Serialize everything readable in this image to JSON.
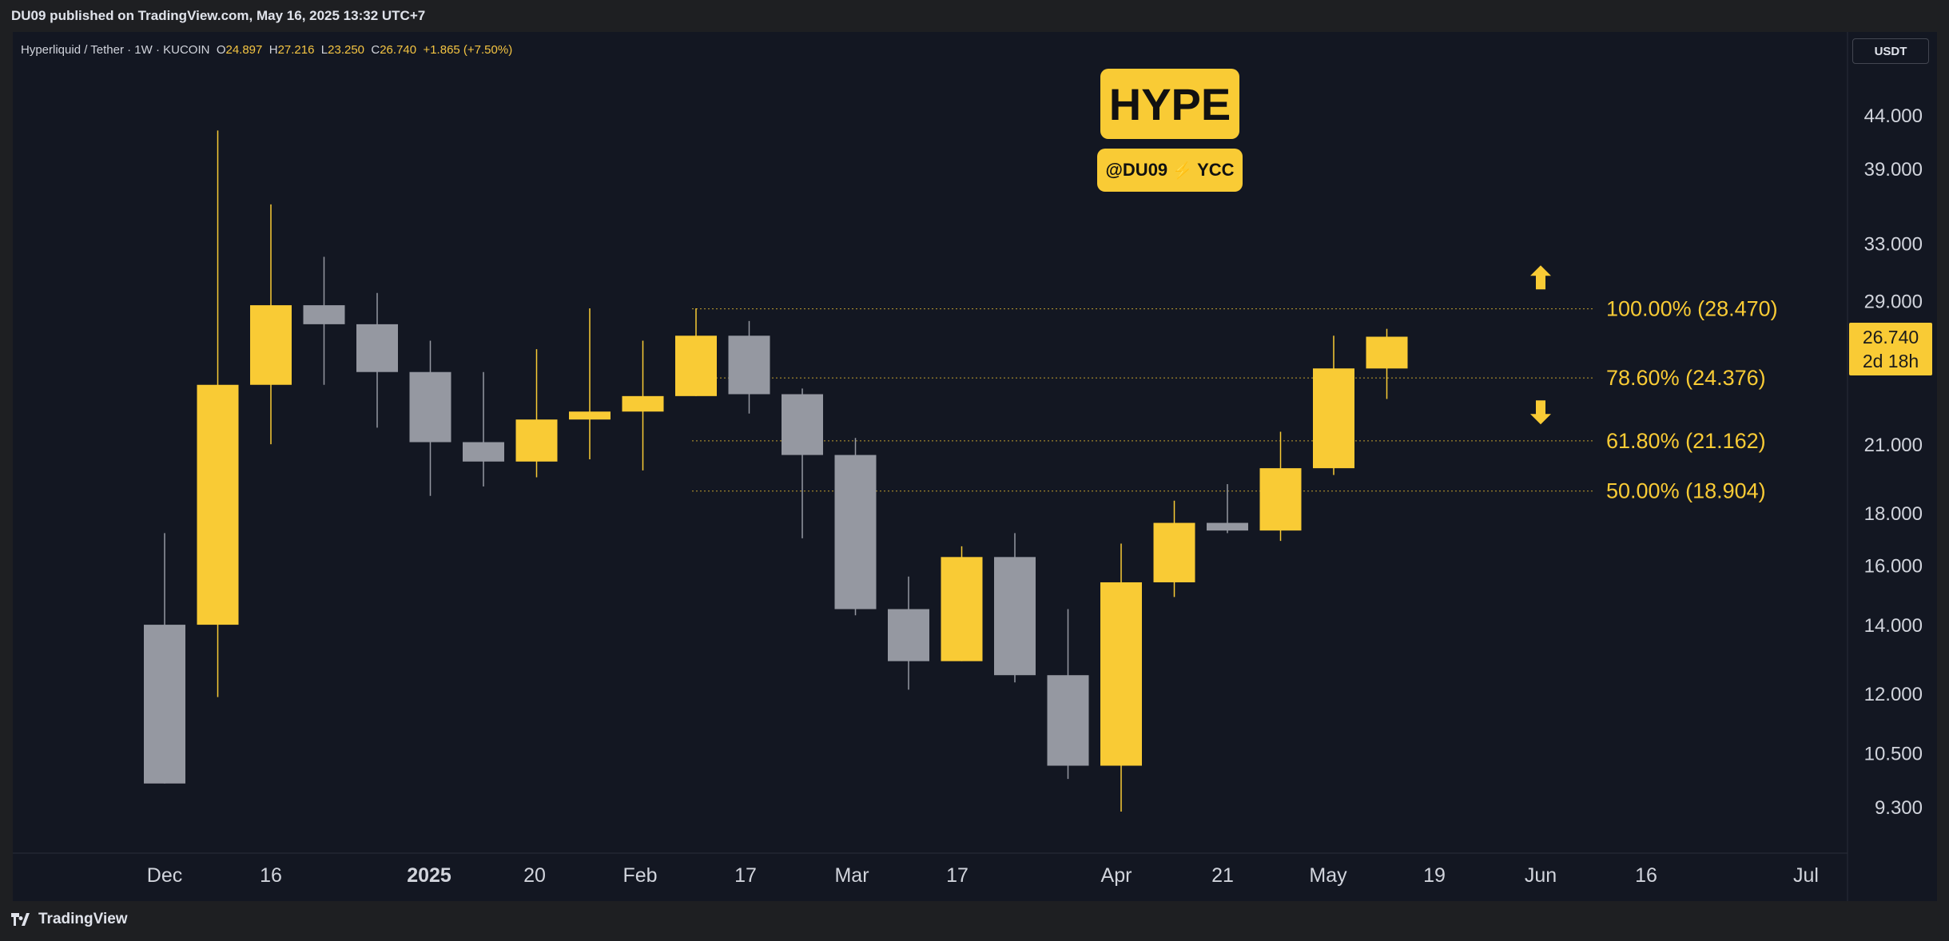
{
  "header": {
    "published": "DU09 published on TradingView.com, May 16, 2025 13:32 UTC+7"
  },
  "legend": {
    "symbol": "Hyperliquid / Tether · 1W · KUCOIN",
    "open_label": "O",
    "open": "24.897",
    "high_label": "H",
    "high": "27.216",
    "low_label": "L",
    "low": "23.250",
    "close_label": "C",
    "close": "26.740",
    "change": "+1.865 (+7.50%)"
  },
  "currency_button": "USDT",
  "price_tag": {
    "price": "26.740",
    "countdown": "2d 18h"
  },
  "annotations": {
    "title": "HYPE",
    "handle_left": "@DU09",
    "handle_right": "YCC"
  },
  "footer": {
    "brand": "TradingView"
  },
  "colors": {
    "bull": "#f9cb35",
    "bear": "#9598a1",
    "background": "#131722",
    "fib": "#f9cb35"
  },
  "chart_data": {
    "type": "candlestick",
    "scale": "log",
    "ylim": [
      8.5,
      48
    ],
    "y_ticks": [
      "44.000",
      "39.000",
      "33.000",
      "29.000",
      "21.000",
      "18.000",
      "16.000",
      "14.000",
      "12.000",
      "10.500",
      "9.300"
    ],
    "x_ticks": [
      "Dec",
      "16",
      "2025",
      "20",
      "Feb",
      "17",
      "Mar",
      "17",
      "Apr",
      "21",
      "May",
      "19",
      "Jun",
      "16",
      "Jul"
    ],
    "candles": [
      {
        "o": 14.0,
        "h": 17.2,
        "l": 9.8,
        "c": 9.8
      },
      {
        "o": 14.0,
        "h": 42.5,
        "l": 11.9,
        "c": 24.0
      },
      {
        "o": 24.0,
        "h": 36.0,
        "l": 21.0,
        "c": 28.7
      },
      {
        "o": 28.7,
        "h": 32.0,
        "l": 24.0,
        "c": 27.5
      },
      {
        "o": 27.5,
        "h": 29.5,
        "l": 21.8,
        "c": 24.7
      },
      {
        "o": 24.7,
        "h": 26.5,
        "l": 18.7,
        "c": 21.1
      },
      {
        "o": 21.1,
        "h": 24.7,
        "l": 19.1,
        "c": 20.2
      },
      {
        "o": 20.2,
        "h": 26.0,
        "l": 19.5,
        "c": 22.2
      },
      {
        "o": 22.2,
        "h": 28.5,
        "l": 20.3,
        "c": 22.6
      },
      {
        "o": 22.6,
        "h": 26.5,
        "l": 19.8,
        "c": 23.4
      },
      {
        "o": 23.4,
        "h": 28.5,
        "l": 23.4,
        "c": 26.8
      },
      {
        "o": 26.8,
        "h": 27.7,
        "l": 22.5,
        "c": 23.5
      },
      {
        "o": 23.5,
        "h": 23.8,
        "l": 17.0,
        "c": 20.5
      },
      {
        "o": 20.5,
        "h": 21.3,
        "l": 14.3,
        "c": 14.5
      },
      {
        "o": 14.5,
        "h": 15.6,
        "l": 12.1,
        "c": 12.9
      },
      {
        "o": 12.9,
        "h": 16.7,
        "l": 12.9,
        "c": 16.3
      },
      {
        "o": 16.3,
        "h": 17.2,
        "l": 12.3,
        "c": 12.5
      },
      {
        "o": 12.5,
        "h": 14.5,
        "l": 9.9,
        "c": 10.2
      },
      {
        "o": 10.2,
        "h": 16.8,
        "l": 9.2,
        "c": 15.4
      },
      {
        "o": 15.4,
        "h": 18.5,
        "l": 14.9,
        "c": 17.6
      },
      {
        "o": 17.6,
        "h": 19.2,
        "l": 17.2,
        "c": 17.3
      },
      {
        "o": 17.3,
        "h": 21.6,
        "l": 16.9,
        "c": 19.9
      },
      {
        "o": 19.9,
        "h": 26.8,
        "l": 19.6,
        "c": 24.9
      },
      {
        "o": 24.897,
        "h": 27.216,
        "l": 23.25,
        "c": 26.74
      }
    ],
    "fib_levels": [
      {
        "label": "100.00% (28.470)",
        "value": 28.47
      },
      {
        "label": "78.60% (24.376)",
        "value": 24.376
      },
      {
        "label": "61.80% (21.162)",
        "value": 21.162
      },
      {
        "label": "50.00% (18.904)",
        "value": 18.904
      }
    ],
    "arrows": [
      {
        "direction": "up",
        "value": 30.5
      },
      {
        "direction": "down",
        "value": 22.6
      }
    ]
  }
}
